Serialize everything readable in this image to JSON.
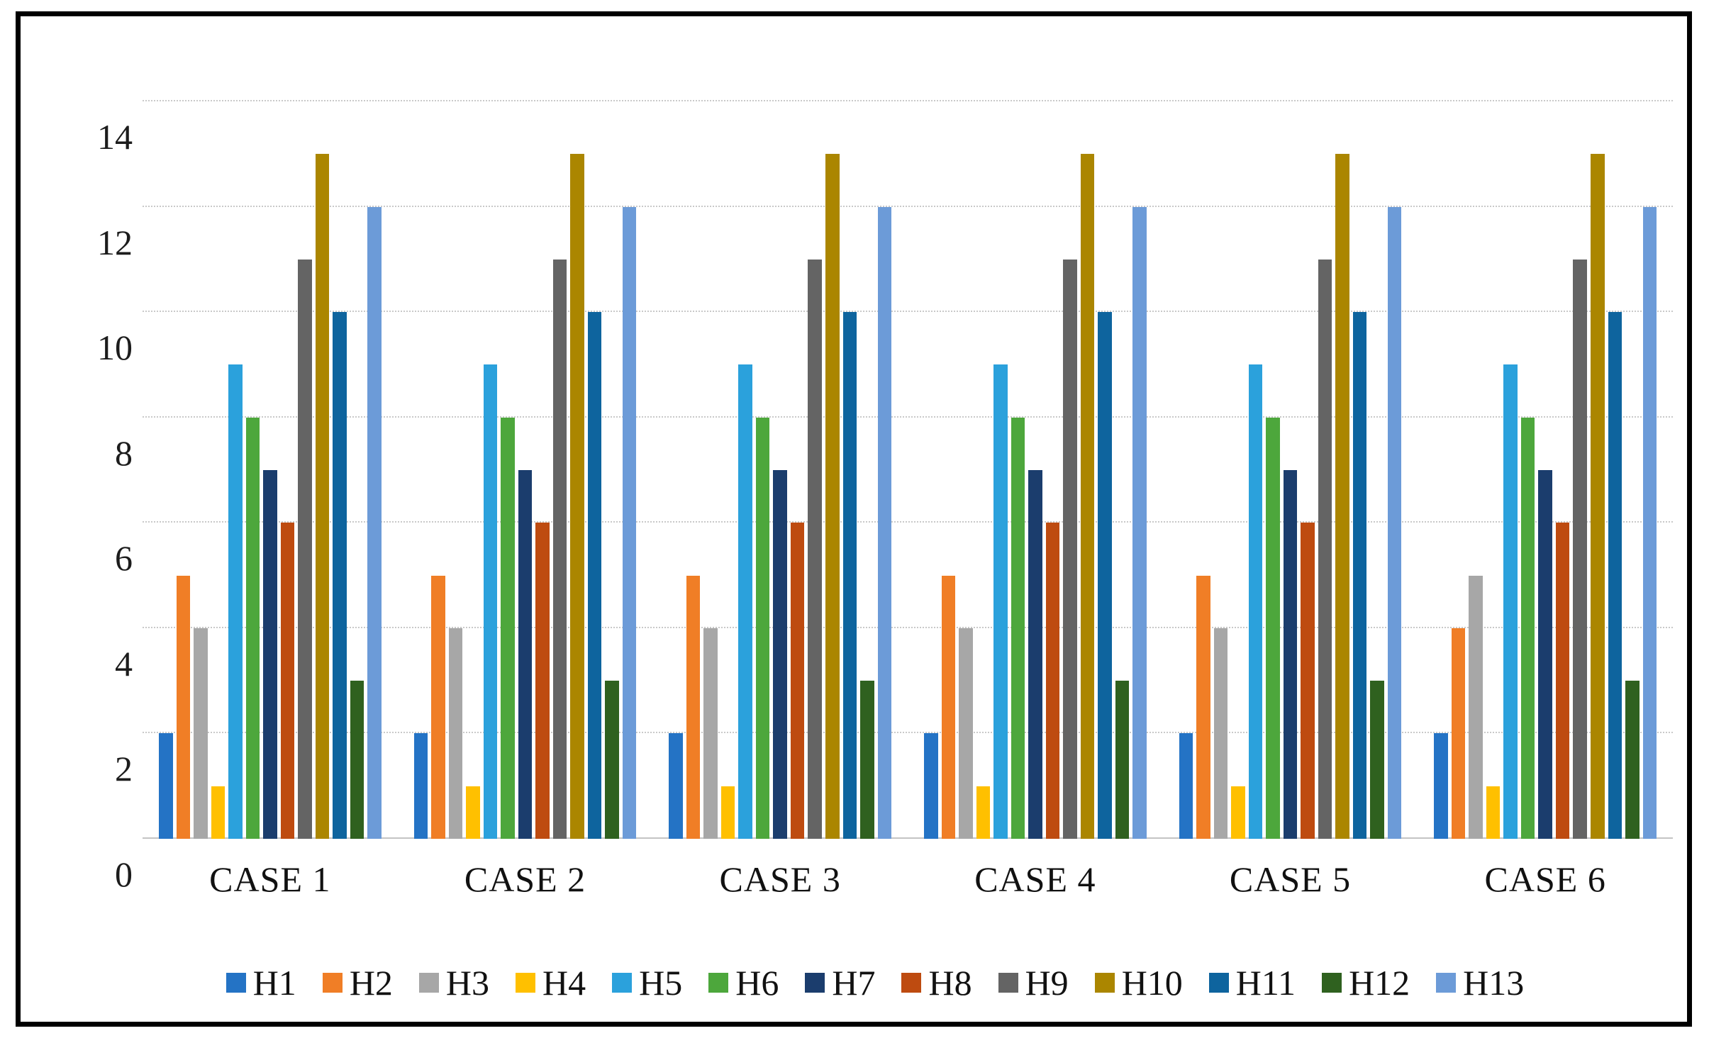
{
  "frame": {
    "border_color": "#000000",
    "background": "#ffffff"
  },
  "chart_data": {
    "type": "bar",
    "title": "",
    "xlabel": "",
    "ylabel": "",
    "categories": [
      "CASE 1",
      "CASE 2",
      "CASE 3",
      "CASE 4",
      "CASE 5",
      "CASE 6"
    ],
    "series": [
      {
        "name": "H1",
        "color": "#2473C5",
        "values": [
          2,
          2,
          2,
          2,
          2,
          2
        ]
      },
      {
        "name": "H2",
        "color": "#F07E26",
        "values": [
          5,
          5,
          5,
          5,
          5,
          4
        ]
      },
      {
        "name": "H3",
        "color": "#A7A7A7",
        "values": [
          4,
          4,
          4,
          4,
          4,
          5
        ]
      },
      {
        "name": "H4",
        "color": "#FFC000",
        "values": [
          1,
          1,
          1,
          1,
          1,
          1
        ]
      },
      {
        "name": "H5",
        "color": "#2BA1DC",
        "values": [
          9,
          9,
          9,
          9,
          9,
          9
        ]
      },
      {
        "name": "H6",
        "color": "#4DA73C",
        "values": [
          8,
          8,
          8,
          8,
          8,
          8
        ]
      },
      {
        "name": "H7",
        "color": "#1B3D6D",
        "values": [
          7,
          7,
          7,
          7,
          7,
          7
        ]
      },
      {
        "name": "H8",
        "color": "#BE4B10",
        "values": [
          6,
          6,
          6,
          6,
          6,
          6
        ]
      },
      {
        "name": "H9",
        "color": "#646464",
        "values": [
          11,
          11,
          11,
          11,
          11,
          11
        ]
      },
      {
        "name": "H10",
        "color": "#AB8600",
        "values": [
          13,
          13,
          13,
          13,
          13,
          13
        ]
      },
      {
        "name": "H11",
        "color": "#0E649E",
        "values": [
          10,
          10,
          10,
          10,
          10,
          10
        ]
      },
      {
        "name": "H12",
        "color": "#2F611F",
        "values": [
          3,
          3,
          3,
          3,
          3,
          3
        ]
      },
      {
        "name": "H13",
        "color": "#6C9BD8",
        "values": [
          12,
          12,
          12,
          12,
          12,
          12
        ]
      }
    ],
    "ylim": [
      0,
      14
    ],
    "yticks": [
      0,
      2,
      4,
      6,
      8,
      10,
      12,
      14
    ],
    "grid": "horizontal",
    "gridline_color": "#c9c9c9",
    "legend_position": "bottom",
    "legend_entries": [
      "H1",
      "H2",
      "H3",
      "H4",
      "H5",
      "H6",
      "H7",
      "H8",
      "H9",
      "H10",
      "H11",
      "H12",
      "H13"
    ]
  }
}
